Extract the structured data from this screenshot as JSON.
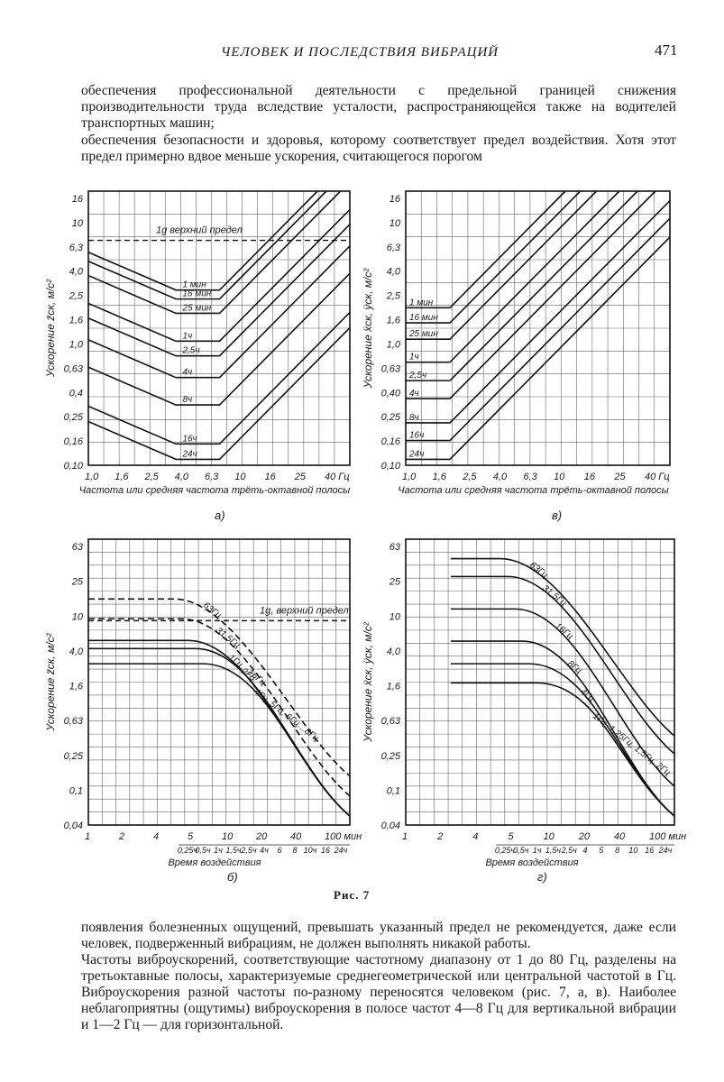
{
  "header": {
    "running_title": "ЧЕЛОВЕК И ПОСЛЕДСТВИЯ ВИБРАЦИЙ",
    "page_number": "471"
  },
  "text_top": [
    "обеспечения профессиональной деятельности с предельной границей снижения производительности труда вследствие усталости, распространяющейся также на водителей транспортных машин;",
    "обеспечения безопасности и здоровья, которому соответствует предел воздействия. Хотя этот предел примерно вдвое меньше ускорения, считающегося порогом"
  ],
  "figure_caption": "Рис. 7",
  "text_bottom": [
    "появления болезненных ощущений, превышать указанный предел не рекомендуется, даже если человек, подверженный вибрациям, не должен выполнять никакой работы.",
    "Частоты виброускорений, соответствующие частотному диапазону от 1 до 80 Гц, разделены на третьоктавные полосы, характеризуемые среднегеометрической или центральной частотой в Гц. Виброускорения разной частоты по-разному переносятся человеком (рис. 7, а, в). Наиболее неблагоприятны (ощутимы) виброускорения в полосе частот 4—8 Гц для вертикальной вибрации и 1—2 Гц — для горизонтальной."
  ],
  "chart_data": [
    {
      "panel": "а)",
      "type": "line",
      "ylabel": "Ускорение z̈ск, м/с²",
      "xlabel": "Частота или средняя частота трёть-октавной полосы",
      "x_ticks": [
        "1,0",
        "1,6",
        "2,5",
        "4,0",
        "6,3",
        "10",
        "16",
        "25",
        "40 Гц"
      ],
      "y_ticks": [
        "16",
        "10",
        "6,3",
        "4,0",
        "2,5",
        "1,6",
        "1,0",
        "0,63",
        "0,4",
        "0,25",
        "0,16",
        "0,10"
      ],
      "ylim": [
        0.1,
        16
      ],
      "xlim": [
        1.0,
        63
      ],
      "limit_line": {
        "label": "1g  верхний предел",
        "value": 7.2
      },
      "series": [
        {
          "name": "1 мин",
          "min_value": 2.8
        },
        {
          "name": "16 мин",
          "min_value": 2.36
        },
        {
          "name": "25 мин",
          "min_value": 1.8
        },
        {
          "name": "1ч",
          "min_value": 1.06
        },
        {
          "name": "2,5ч",
          "min_value": 0.8
        },
        {
          "name": "4ч",
          "min_value": 0.53
        },
        {
          "name": "8ч",
          "min_value": 0.315
        },
        {
          "name": "16ч",
          "min_value": 0.15
        },
        {
          "name": "24ч",
          "min_value": 0.112
        }
      ]
    },
    {
      "panel": "в)",
      "type": "line",
      "ylabel": "Ускорение ẍск, ÿск, м/с²",
      "xlabel": "Частота или средняя частота трёть-октавной полосы",
      "x_ticks": [
        "1,0",
        "1,6",
        "2,5",
        "4,0",
        "6,3",
        "10",
        "16",
        "25",
        "40 Гц"
      ],
      "y_ticks": [
        "16",
        "10",
        "6,3",
        "4,0",
        "2,5",
        "1,6",
        "1,0",
        "0,63",
        "0,40",
        "0,25",
        "0,16",
        "0,10"
      ],
      "ylim": [
        0.1,
        16
      ],
      "xlim": [
        1.0,
        63
      ],
      "series": [
        {
          "name": "1 мин",
          "min_value": 2.0
        },
        {
          "name": "16 мин",
          "min_value": 1.5
        },
        {
          "name": "25 мин",
          "min_value": 1.1
        },
        {
          "name": "1ч",
          "min_value": 0.71
        },
        {
          "name": "2,5ч",
          "min_value": 0.5
        },
        {
          "name": "4ч",
          "min_value": 0.355
        },
        {
          "name": "8ч",
          "min_value": 0.224
        },
        {
          "name": "16ч",
          "min_value": 0.16
        },
        {
          "name": "24ч",
          "min_value": 0.112
        }
      ]
    },
    {
      "panel": "б)",
      "type": "line",
      "ylabel": "Ускорение z̈ск, м/с²",
      "xlabel": "Время воздействия",
      "x_ticks": [
        "1",
        "2",
        "4",
        "5",
        "10",
        "20",
        "40",
        "100 мин"
      ],
      "x_ticks_hours": [
        "0,25ч",
        "0,5ч",
        "1ч",
        "1,5ч",
        "2,5ч",
        "4ч",
        "6",
        "8",
        "10ч",
        "16",
        "24ч"
      ],
      "y_ticks": [
        "63",
        "25",
        "10",
        "4,0",
        "1,6",
        "0,63",
        "0,25",
        "0,1",
        "0,04"
      ],
      "ylim": [
        0.04,
        63
      ],
      "limit_line": {
        "label": "1g, верхний предел",
        "value": 9.5
      },
      "series": [
        {
          "name": "63Гц",
          "start_value": 17,
          "dashed": true
        },
        {
          "name": "31,5Гц",
          "start_value": 10,
          "dashed": true
        },
        {
          "name": "1Гц…16Гц",
          "start_value": 5.6
        },
        {
          "name": "2Гц",
          "start_value": 4.5
        },
        {
          "name": "4Гц, 5Гц, 6Гц…8Гц",
          "start_value": 3.0
        }
      ]
    },
    {
      "panel": "г)",
      "type": "line",
      "ylabel": "Ускорение ẍск, ÿск, м/с²",
      "xlabel": "Время воздействия",
      "x_ticks": [
        "1",
        "2",
        "4",
        "5",
        "10",
        "20",
        "40",
        "100 мин"
      ],
      "x_ticks_hours": [
        "0,25ч",
        "0,5ч",
        "1ч",
        "1,5ч",
        "2,5ч",
        "4",
        "5",
        "8",
        "10",
        "16",
        "24ч"
      ],
      "y_ticks": [
        "63",
        "25",
        "10",
        "4,0",
        "1,6",
        "0,63",
        "0,25",
        "0,1",
        "0,04"
      ],
      "ylim": [
        0.04,
        63
      ],
      "series": [
        {
          "name": "63Гц",
          "start_value": 50
        },
        {
          "name": "31,5Гц",
          "start_value": 31
        },
        {
          "name": "16Гц",
          "start_value": 13
        },
        {
          "name": "8Гц",
          "start_value": 5.5
        },
        {
          "name": "4Гц",
          "start_value": 3.0
        },
        {
          "name": "1Гц, 1,25Гц, 1,5Гц, 2Гц",
          "start_value": 1.8
        }
      ]
    }
  ]
}
